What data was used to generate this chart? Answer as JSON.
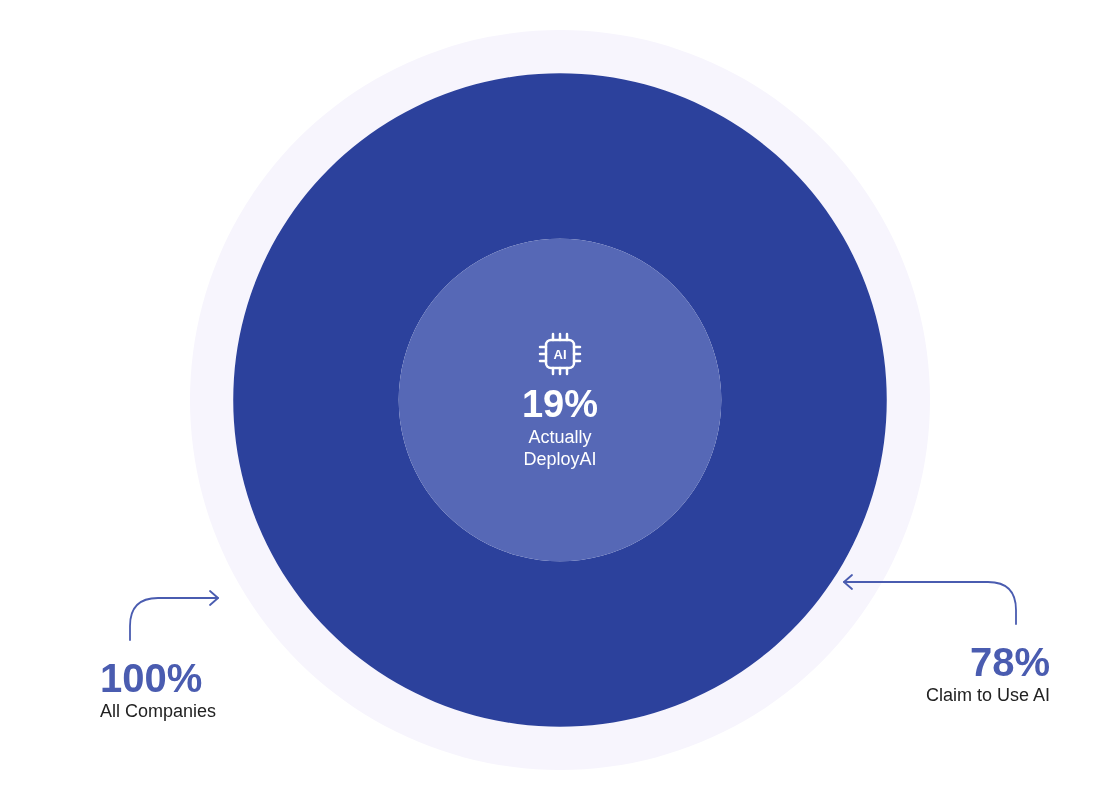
{
  "chart_data": {
    "type": "other",
    "categories": [
      "All Companies",
      "Claim to Use AI",
      "Actually DeployAI"
    ],
    "values": [
      100,
      78,
      19
    ],
    "value_labels": [
      "100%",
      "78%",
      "19%"
    ],
    "colors": [
      "#f7f5fd",
      "#2c419c",
      "#5668b6"
    ],
    "annotations": [
      "AI"
    ]
  }
}
